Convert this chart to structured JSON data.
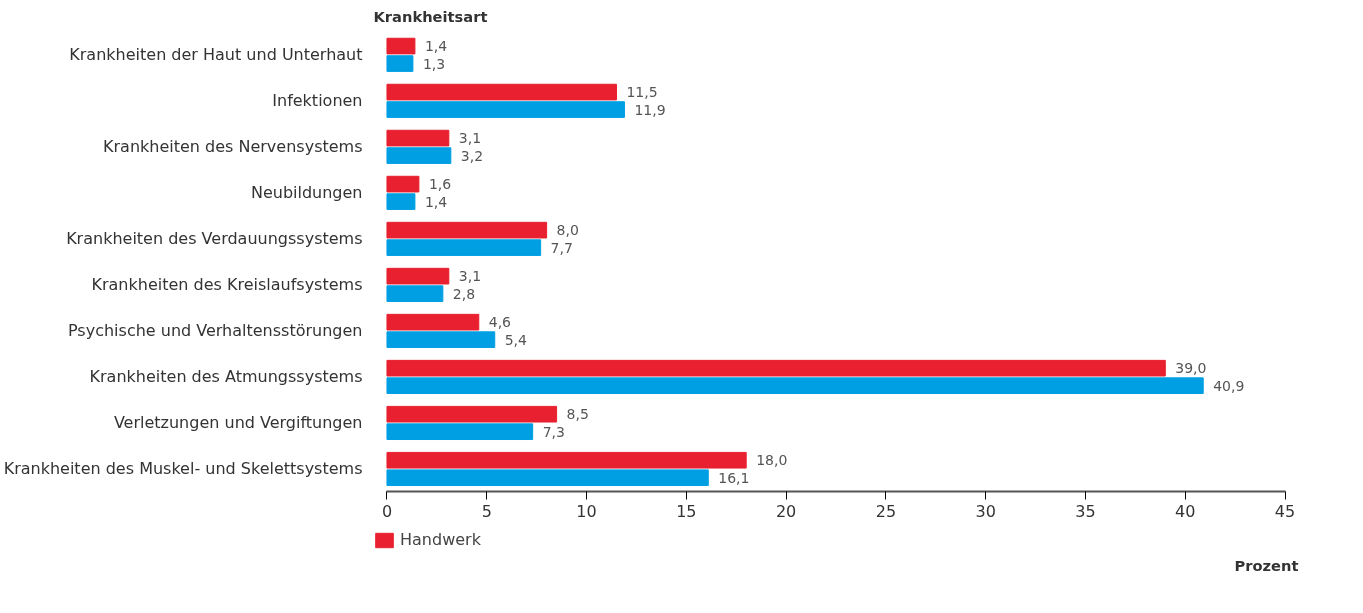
{
  "chart_data": {
    "type": "bar",
    "orientation": "horizontal",
    "ylabel": "Krankheitsart",
    "xlabel": "Prozent",
    "categories": [
      "Krankheiten der Haut und Unterhaut",
      "Infektionen",
      "Krankheiten des Nervensystems",
      "Neubildungen",
      "Krankheiten des Verdauungssystems",
      "Krankheiten des Kreislaufsystems",
      "Psychische und Verhaltensstörungen",
      "Krankheiten des Atmungssystems",
      "Verletzungen und Vergiftungen",
      "Krankheiten des Muskel- und Skelettsystems"
    ],
    "series": [
      {
        "name": "Handwerk",
        "color": "#e8202f",
        "values": [
          1.4,
          11.5,
          3.1,
          1.6,
          8.0,
          3.1,
          4.6,
          39.0,
          8.5,
          18.0
        ],
        "value_labels": [
          "1,4",
          "11,5",
          "3,1",
          "1,6",
          "8,0",
          "3,1",
          "4,6",
          "39,0",
          "8,5",
          "18,0"
        ]
      },
      {
        "color": "#009fe3",
        "values": [
          1.3,
          11.9,
          3.2,
          1.4,
          7.7,
          2.8,
          5.4,
          40.9,
          7.3,
          16.1
        ],
        "value_labels": [
          "1,3",
          "11,9",
          "3,2",
          "1,4",
          "7,7",
          "2,8",
          "5,4",
          "40,9",
          "7,3",
          "16,1"
        ]
      }
    ],
    "xlim": [
      0,
      45
    ],
    "xticks": [
      0,
      5,
      10,
      15,
      20,
      25,
      30,
      35,
      40,
      45
    ],
    "legend": "bottom left"
  }
}
